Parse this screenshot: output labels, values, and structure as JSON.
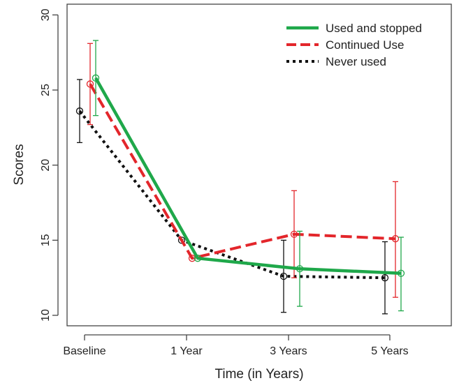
{
  "chart_data": {
    "type": "line",
    "title": "",
    "xlabel": "Time (in Years)",
    "ylabel": "Scores",
    "ylim": [
      10,
      30
    ],
    "yticks": [
      10,
      15,
      20,
      25,
      30
    ],
    "categories": [
      "Baseline",
      "1 Year",
      "3 Years",
      "5 Years"
    ],
    "grid": false,
    "legend_position": "top-right",
    "series": [
      {
        "name": "Used and stopped",
        "color": "#1fa84a",
        "line_style": "solid",
        "values": [
          25.8,
          13.8,
          13.1,
          12.8
        ],
        "error_low": [
          23.3,
          13.8,
          10.6,
          10.3
        ],
        "error_high": [
          28.3,
          13.8,
          15.6,
          15.2
        ]
      },
      {
        "name": "Continued Use",
        "color": "#e3262b",
        "line_style": "dashed",
        "values": [
          25.4,
          13.8,
          15.4,
          15.1
        ],
        "error_low": [
          22.7,
          13.8,
          12.5,
          11.2
        ],
        "error_high": [
          28.1,
          13.8,
          18.3,
          18.9
        ]
      },
      {
        "name": "Never used",
        "color": "#111111",
        "line_style": "dotted",
        "values": [
          23.6,
          15.0,
          12.6,
          12.5
        ],
        "error_low": [
          21.5,
          15.0,
          10.2,
          10.1
        ],
        "error_high": [
          25.7,
          15.0,
          15.0,
          14.9
        ]
      }
    ]
  }
}
